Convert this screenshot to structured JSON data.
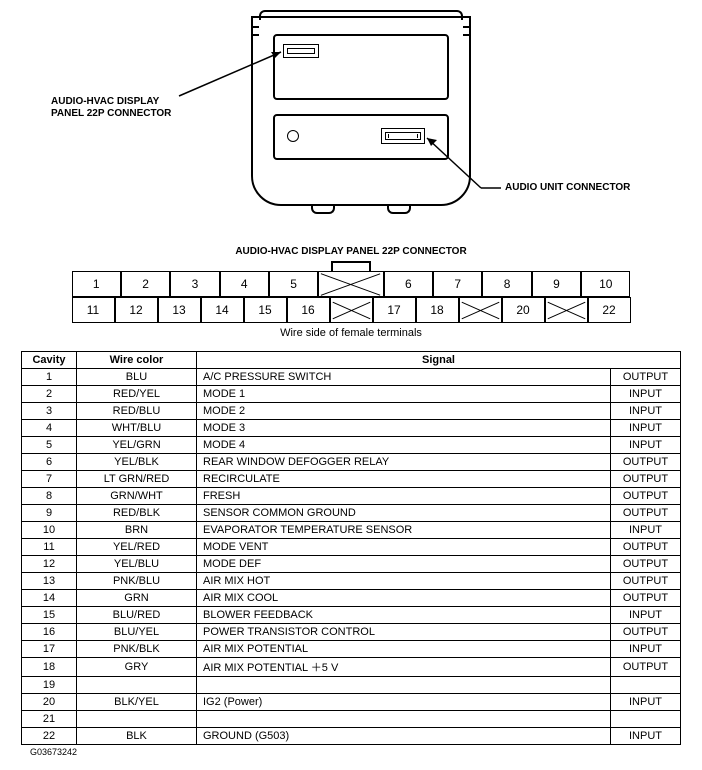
{
  "diagram": {
    "label_left": "AUDIO-HVAC DISPLAY\nPANEL 22P CONNECTOR",
    "label_right": "AUDIO UNIT CONNECTOR",
    "title": "AUDIO-HVAC DISPLAY PANEL 22P CONNECTOR",
    "caption": "Wire side of female terminals",
    "colors": {
      "stroke": "#000000",
      "bg": "#ffffff"
    }
  },
  "pinout": {
    "row1": [
      "1",
      "2",
      "3",
      "4",
      "5",
      "X",
      "6",
      "7",
      "8",
      "9",
      "10"
    ],
    "row2": [
      "11",
      "12",
      "13",
      "14",
      "15",
      "16",
      "X",
      "17",
      "18",
      "X",
      "20",
      "X",
      "22"
    ],
    "wide_index_row1": 5,
    "cell_fontsize": 12
  },
  "table": {
    "headers": [
      "Cavity",
      "Wire color",
      "Signal",
      ""
    ],
    "rows": [
      {
        "cavity": "1",
        "wire": "BLU",
        "signal": "A/C PRESSURE SWITCH",
        "dir": "OUTPUT"
      },
      {
        "cavity": "2",
        "wire": "RED/YEL",
        "signal": "MODE 1",
        "dir": "INPUT"
      },
      {
        "cavity": "3",
        "wire": "RED/BLU",
        "signal": "MODE 2",
        "dir": "INPUT"
      },
      {
        "cavity": "4",
        "wire": "WHT/BLU",
        "signal": "MODE 3",
        "dir": "INPUT"
      },
      {
        "cavity": "5",
        "wire": "YEL/GRN",
        "signal": "MODE 4",
        "dir": "INPUT"
      },
      {
        "cavity": "6",
        "wire": "YEL/BLK",
        "signal": "REAR WINDOW DEFOGGER RELAY",
        "dir": "OUTPUT"
      },
      {
        "cavity": "7",
        "wire": "LT GRN/RED",
        "signal": "RECIRCULATE",
        "dir": "OUTPUT"
      },
      {
        "cavity": "8",
        "wire": "GRN/WHT",
        "signal": "FRESH",
        "dir": "OUTPUT"
      },
      {
        "cavity": "9",
        "wire": "RED/BLK",
        "signal": "SENSOR COMMON GROUND",
        "dir": "OUTPUT"
      },
      {
        "cavity": "10",
        "wire": "BRN",
        "signal": "EVAPORATOR TEMPERATURE SENSOR",
        "dir": "INPUT"
      },
      {
        "cavity": "11",
        "wire": "YEL/RED",
        "signal": "MODE VENT",
        "dir": "OUTPUT"
      },
      {
        "cavity": "12",
        "wire": "YEL/BLU",
        "signal": "MODE DEF",
        "dir": "OUTPUT"
      },
      {
        "cavity": "13",
        "wire": "PNK/BLU",
        "signal": "AIR MIX HOT",
        "dir": "OUTPUT"
      },
      {
        "cavity": "14",
        "wire": "GRN",
        "signal": "AIR MIX COOL",
        "dir": "OUTPUT"
      },
      {
        "cavity": "15",
        "wire": "BLU/RED",
        "signal": "BLOWER FEEDBACK",
        "dir": "INPUT"
      },
      {
        "cavity": "16",
        "wire": "BLU/YEL",
        "signal": "POWER TRANSISTOR CONTROL",
        "dir": "OUTPUT"
      },
      {
        "cavity": "17",
        "wire": "PNK/BLK",
        "signal": "AIR MIX POTENTIAL",
        "dir": "INPUT"
      },
      {
        "cavity": "18",
        "wire": "GRY",
        "signal": "AIR MIX POTENTIAL ＋5 V",
        "dir": "OUTPUT"
      },
      {
        "cavity": "19",
        "wire": "",
        "signal": "",
        "dir": ""
      },
      {
        "cavity": "20",
        "wire": "BLK/YEL",
        "signal": "IG2 (Power)",
        "dir": "INPUT"
      },
      {
        "cavity": "21",
        "wire": "",
        "signal": "",
        "dir": ""
      },
      {
        "cavity": "22",
        "wire": "BLK",
        "signal": "GROUND (G503)",
        "dir": "INPUT"
      }
    ]
  },
  "doc_id": "G03673242"
}
